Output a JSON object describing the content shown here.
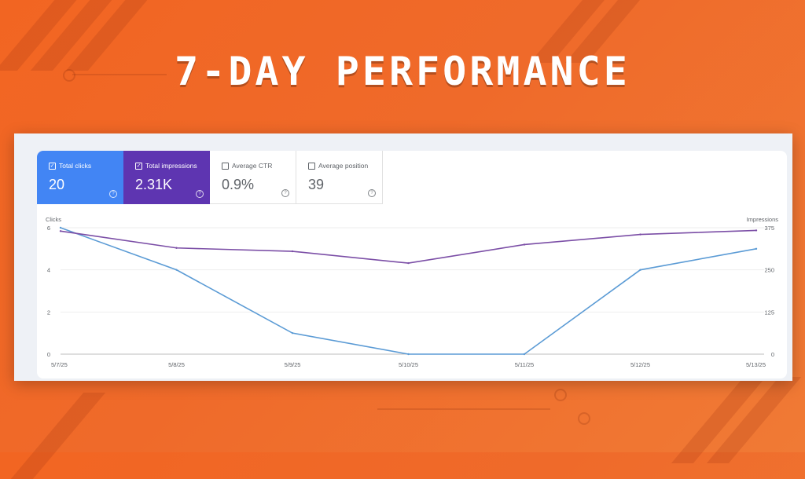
{
  "headline": "7-DAY PERFORMANCE",
  "metrics": [
    {
      "label": "Total clicks",
      "value": "20",
      "checked": true,
      "color": "#4285f4"
    },
    {
      "label": "Total impressions",
      "value": "2.31K",
      "checked": true,
      "color": "#5e35b1"
    },
    {
      "label": "Average CTR",
      "value": "0.9%",
      "checked": false
    },
    {
      "label": "Average position",
      "value": "39",
      "checked": false
    }
  ],
  "icons": {
    "checkbox": "check-square-icon",
    "help": "question-circle-icon"
  },
  "colors": {
    "clicks": "#5b9bd5",
    "impressions": "#7b4ea6",
    "background": "#f26522"
  },
  "chart_data": {
    "type": "line",
    "x": [
      "5/7/25",
      "5/8/25",
      "5/9/25",
      "5/10/25",
      "5/11/25",
      "5/12/25",
      "5/13/25"
    ],
    "left_axis": {
      "label": "Clicks",
      "ticks": [
        0,
        2,
        4,
        6
      ],
      "range": [
        0,
        6
      ]
    },
    "right_axis": {
      "label": "Impressions",
      "ticks": [
        0,
        125,
        250,
        375
      ],
      "range": [
        0,
        375
      ]
    },
    "series": [
      {
        "name": "Total clicks",
        "axis": "left",
        "color": "#5b9bd5",
        "values": [
          6,
          4,
          1,
          0,
          0,
          4,
          5
        ]
      },
      {
        "name": "Total impressions",
        "axis": "right",
        "color": "#7b4ea6",
        "values": [
          365,
          315,
          305,
          270,
          325,
          355,
          367
        ]
      }
    ],
    "grid": true
  }
}
